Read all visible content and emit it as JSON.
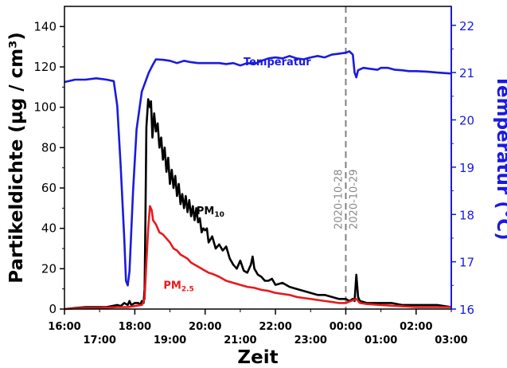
{
  "chart_data": {
    "type": "line",
    "xlabel": "Zeit",
    "ylabel_left": "Partikeldichte (µg / cm³)",
    "ylabel_right": "Temperatur (°C)",
    "xlim": [
      16.0,
      27.0
    ],
    "ylim_left": [
      0,
      150
    ],
    "ylim_right": [
      16,
      22.4
    ],
    "yticks_left": [
      0,
      20,
      40,
      60,
      80,
      100,
      120,
      140
    ],
    "yticks_right": [
      16,
      17,
      18,
      19,
      20,
      21,
      22
    ],
    "xticks_major": [
      {
        "x": 16,
        "label": "16:00"
      },
      {
        "x": 18,
        "label": "18:00"
      },
      {
        "x": 20,
        "label": "20:00"
      },
      {
        "x": 22,
        "label": "22:00"
      },
      {
        "x": 24,
        "label": "00:00"
      },
      {
        "x": 26,
        "label": "02:00"
      }
    ],
    "xticks_minor": [
      {
        "x": 17,
        "label": "17:00"
      },
      {
        "x": 19,
        "label": "19:00"
      },
      {
        "x": 21,
        "label": "21:00"
      },
      {
        "x": 23,
        "label": "23:00"
      },
      {
        "x": 25,
        "label": "01:00"
      },
      {
        "x": 27,
        "label": "03:00"
      }
    ],
    "midnight": {
      "x": 24,
      "label_before": "2020-10-28",
      "label_after": "2020-10-29"
    },
    "series": [
      {
        "name": "PM10",
        "axis": "left",
        "color": "#000000",
        "points": [
          [
            16.0,
            0
          ],
          [
            16.3,
            0.5
          ],
          [
            16.6,
            1
          ],
          [
            16.9,
            1
          ],
          [
            17.2,
            1
          ],
          [
            17.5,
            2
          ],
          [
            17.6,
            1.5
          ],
          [
            17.7,
            3
          ],
          [
            17.8,
            2
          ],
          [
            17.85,
            4
          ],
          [
            17.9,
            2
          ],
          [
            18.0,
            3
          ],
          [
            18.1,
            3
          ],
          [
            18.15,
            2
          ],
          [
            18.2,
            4
          ],
          [
            18.25,
            3
          ],
          [
            18.28,
            10
          ],
          [
            18.3,
            40
          ],
          [
            18.33,
            90
          ],
          [
            18.38,
            104
          ],
          [
            18.43,
            100
          ],
          [
            18.46,
            103
          ],
          [
            18.5,
            85
          ],
          [
            18.55,
            97
          ],
          [
            18.6,
            88
          ],
          [
            18.65,
            92
          ],
          [
            18.7,
            80
          ],
          [
            18.75,
            85
          ],
          [
            18.8,
            74
          ],
          [
            18.85,
            80
          ],
          [
            18.9,
            68
          ],
          [
            18.95,
            75
          ],
          [
            19.0,
            62
          ],
          [
            19.05,
            69
          ],
          [
            19.1,
            60
          ],
          [
            19.15,
            66
          ],
          [
            19.2,
            56
          ],
          [
            19.25,
            62
          ],
          [
            19.3,
            52
          ],
          [
            19.35,
            57
          ],
          [
            19.4,
            50
          ],
          [
            19.45,
            56
          ],
          [
            19.5,
            48
          ],
          [
            19.55,
            54
          ],
          [
            19.6,
            46
          ],
          [
            19.65,
            51
          ],
          [
            19.7,
            44
          ],
          [
            19.75,
            50
          ],
          [
            19.8,
            43
          ],
          [
            19.85,
            45
          ],
          [
            19.9,
            38
          ],
          [
            19.95,
            40
          ],
          [
            20.0,
            39
          ],
          [
            20.05,
            40
          ],
          [
            20.1,
            33
          ],
          [
            20.2,
            36
          ],
          [
            20.3,
            30
          ],
          [
            20.4,
            32
          ],
          [
            20.5,
            29
          ],
          [
            20.6,
            31
          ],
          [
            20.7,
            25
          ],
          [
            20.8,
            22
          ],
          [
            20.9,
            20
          ],
          [
            21.0,
            24
          ],
          [
            21.1,
            19
          ],
          [
            21.2,
            18
          ],
          [
            21.3,
            22
          ],
          [
            21.35,
            26
          ],
          [
            21.4,
            20
          ],
          [
            21.5,
            17
          ],
          [
            21.6,
            16
          ],
          [
            21.7,
            14
          ],
          [
            21.8,
            14
          ],
          [
            21.9,
            15
          ],
          [
            22.0,
            12
          ],
          [
            22.2,
            13
          ],
          [
            22.4,
            11
          ],
          [
            22.6,
            10
          ],
          [
            22.8,
            9
          ],
          [
            23.0,
            8
          ],
          [
            23.2,
            7
          ],
          [
            23.4,
            7
          ],
          [
            23.6,
            6
          ],
          [
            23.8,
            5
          ],
          [
            24.0,
            5
          ],
          [
            24.1,
            4
          ],
          [
            24.2,
            5
          ],
          [
            24.25,
            4
          ],
          [
            24.3,
            17
          ],
          [
            24.35,
            6
          ],
          [
            24.4,
            4
          ],
          [
            24.6,
            3
          ],
          [
            24.8,
            3
          ],
          [
            25.0,
            3
          ],
          [
            25.3,
            3
          ],
          [
            25.6,
            2
          ],
          [
            26.0,
            2
          ],
          [
            26.3,
            2
          ],
          [
            26.6,
            2
          ],
          [
            27.0,
            1
          ]
        ]
      },
      {
        "name": "PM2.5",
        "axis": "left",
        "color": "#e8191c",
        "points": [
          [
            16.0,
            0
          ],
          [
            16.5,
            0.5
          ],
          [
            17.0,
            0.5
          ],
          [
            17.5,
            1
          ],
          [
            17.8,
            1
          ],
          [
            18.0,
            1.5
          ],
          [
            18.2,
            2
          ],
          [
            18.28,
            5
          ],
          [
            18.32,
            20
          ],
          [
            18.38,
            40
          ],
          [
            18.43,
            51
          ],
          [
            18.48,
            49
          ],
          [
            18.52,
            44
          ],
          [
            18.6,
            42
          ],
          [
            18.7,
            38
          ],
          [
            18.8,
            37
          ],
          [
            18.9,
            35
          ],
          [
            19.0,
            33
          ],
          [
            19.1,
            30
          ],
          [
            19.2,
            29
          ],
          [
            19.3,
            27
          ],
          [
            19.4,
            26
          ],
          [
            19.5,
            25
          ],
          [
            19.6,
            23
          ],
          [
            19.7,
            22
          ],
          [
            19.8,
            21
          ],
          [
            19.9,
            20
          ],
          [
            20.0,
            19
          ],
          [
            20.1,
            18
          ],
          [
            20.2,
            17.5
          ],
          [
            20.4,
            16
          ],
          [
            20.6,
            14
          ],
          [
            20.8,
            13
          ],
          [
            21.0,
            12
          ],
          [
            21.2,
            11
          ],
          [
            21.4,
            10.5
          ],
          [
            21.6,
            9.5
          ],
          [
            21.8,
            9
          ],
          [
            22.0,
            8
          ],
          [
            22.2,
            7.5
          ],
          [
            22.4,
            7
          ],
          [
            22.6,
            6
          ],
          [
            22.8,
            5.5
          ],
          [
            23.0,
            5
          ],
          [
            23.2,
            4.5
          ],
          [
            23.4,
            4
          ],
          [
            23.6,
            3.5
          ],
          [
            23.8,
            3
          ],
          [
            24.0,
            3
          ],
          [
            24.3,
            5
          ],
          [
            24.4,
            3
          ],
          [
            24.6,
            2.5
          ],
          [
            25.0,
            2
          ],
          [
            25.5,
            1.5
          ],
          [
            26.0,
            1
          ],
          [
            26.5,
            1
          ],
          [
            27.0,
            1
          ]
        ]
      },
      {
        "name": "Temperatur",
        "axis": "right",
        "color": "#1a1adf",
        "points": [
          [
            16.0,
            20.8
          ],
          [
            16.3,
            20.85
          ],
          [
            16.6,
            20.85
          ],
          [
            16.9,
            20.88
          ],
          [
            17.2,
            20.85
          ],
          [
            17.4,
            20.82
          ],
          [
            17.5,
            20.3
          ],
          [
            17.6,
            19.0
          ],
          [
            17.7,
            17.5
          ],
          [
            17.75,
            16.6
          ],
          [
            17.8,
            16.5
          ],
          [
            17.85,
            16.8
          ],
          [
            17.95,
            18.5
          ],
          [
            18.05,
            19.8
          ],
          [
            18.2,
            20.6
          ],
          [
            18.4,
            21.0
          ],
          [
            18.5,
            21.15
          ],
          [
            18.6,
            21.28
          ],
          [
            18.8,
            21.27
          ],
          [
            19.0,
            21.25
          ],
          [
            19.2,
            21.2
          ],
          [
            19.4,
            21.25
          ],
          [
            19.6,
            21.22
          ],
          [
            19.8,
            21.2
          ],
          [
            20.0,
            21.2
          ],
          [
            20.2,
            21.2
          ],
          [
            20.4,
            21.2
          ],
          [
            20.6,
            21.18
          ],
          [
            20.8,
            21.2
          ],
          [
            21.0,
            21.15
          ],
          [
            21.2,
            21.2
          ],
          [
            21.4,
            21.18
          ],
          [
            21.6,
            21.25
          ],
          [
            21.8,
            21.3
          ],
          [
            22.0,
            21.32
          ],
          [
            22.2,
            21.3
          ],
          [
            22.4,
            21.35
          ],
          [
            22.6,
            21.3
          ],
          [
            22.8,
            21.28
          ],
          [
            23.0,
            21.32
          ],
          [
            23.2,
            21.35
          ],
          [
            23.4,
            21.32
          ],
          [
            23.6,
            21.38
          ],
          [
            23.8,
            21.4
          ],
          [
            24.0,
            21.42
          ],
          [
            24.1,
            21.45
          ],
          [
            24.2,
            21.38
          ],
          [
            24.25,
            21.0
          ],
          [
            24.3,
            20.9
          ],
          [
            24.35,
            21.05
          ],
          [
            24.5,
            21.1
          ],
          [
            24.7,
            21.08
          ],
          [
            24.9,
            21.06
          ],
          [
            25.0,
            21.1
          ],
          [
            25.2,
            21.1
          ],
          [
            25.4,
            21.06
          ],
          [
            25.6,
            21.05
          ],
          [
            25.8,
            21.03
          ],
          [
            26.0,
            21.03
          ],
          [
            26.3,
            21.02
          ],
          [
            26.6,
            21.0
          ],
          [
            27.0,
            20.98
          ]
        ]
      }
    ],
    "annotations": [
      {
        "text": "Temperatur",
        "x": 22.05,
        "y_right": 21.15,
        "color": "#1a1adf"
      },
      {
        "text": "PM",
        "sub": "10",
        "x": 20.15,
        "y_left": 47,
        "color": "#000000"
      },
      {
        "text": "PM",
        "sub": "2.5",
        "x": 19.25,
        "y_left": 10,
        "color": "#e8191c"
      }
    ]
  }
}
